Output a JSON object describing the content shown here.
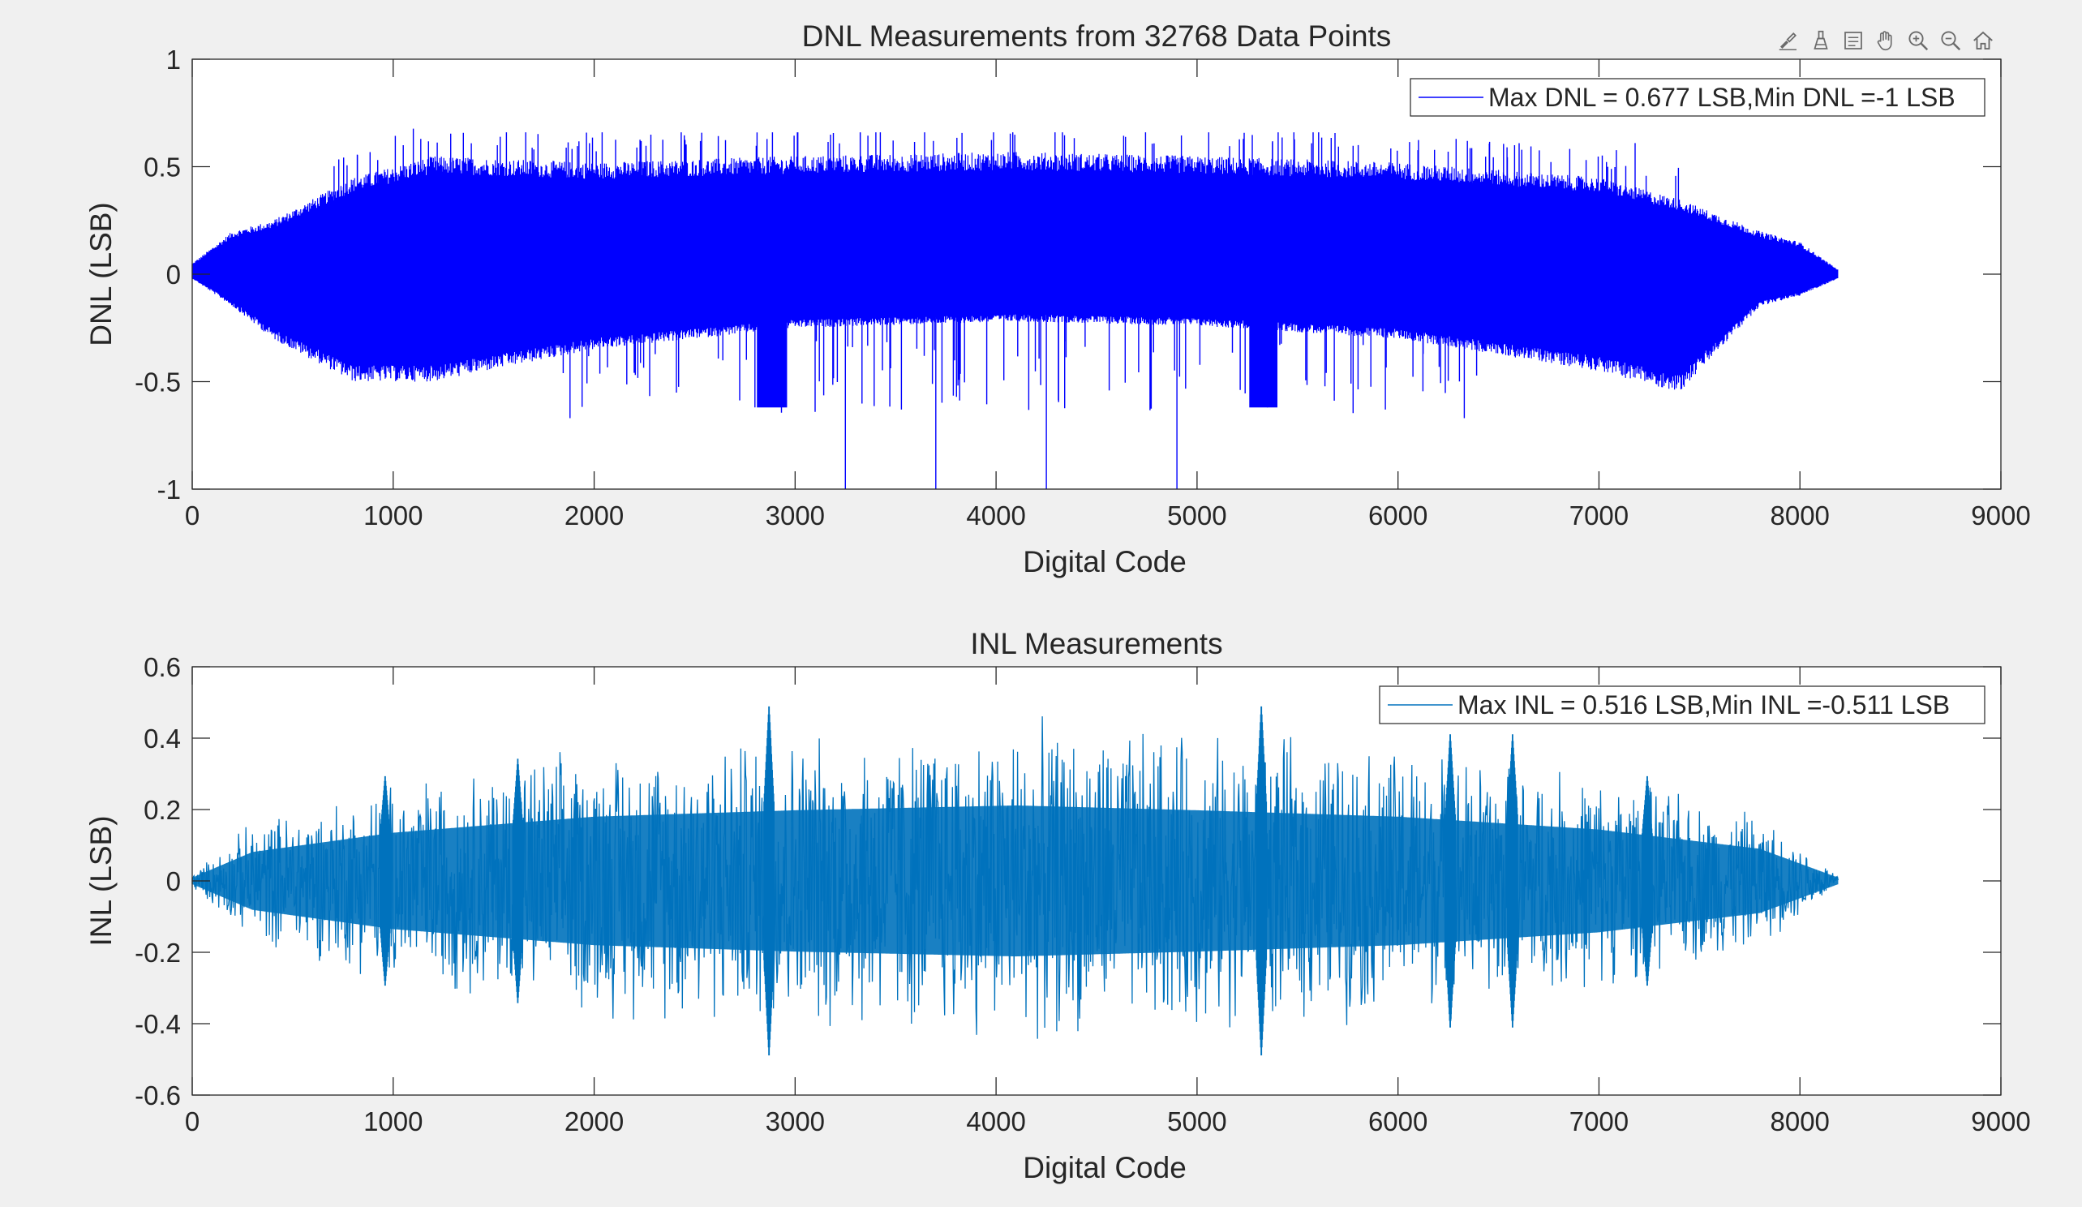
{
  "toolbar": {
    "icons": [
      "brush-icon",
      "data-cursor-icon",
      "legend-toggle-icon",
      "pan-hand-icon",
      "zoom-in-icon",
      "zoom-out-icon",
      "home-icon"
    ]
  },
  "colors": {
    "figure_bg": "#f0f0f0",
    "axes_bg": "#ffffff",
    "dnl_line": "#0000ff",
    "inl_line": "#0072bd",
    "text": "#262626",
    "grid_box": "#262626"
  },
  "chart_data": [
    {
      "type": "line",
      "title": "DNL Measurements from 32768 Data Points",
      "xlabel": "Digital Code",
      "ylabel": "DNL (LSB)",
      "xlim": [
        0,
        9000
      ],
      "ylim": [
        -1,
        1
      ],
      "xticks": [
        "0",
        "1000",
        "2000",
        "3000",
        "4000",
        "5000",
        "6000",
        "7000",
        "8000",
        "9000"
      ],
      "yticks": [
        "1",
        "0.5",
        "0",
        "-0.5",
        "-1"
      ],
      "ytick_values": [
        1,
        0.5,
        0,
        -0.5,
        -1
      ],
      "xtick_values": [
        0,
        1000,
        2000,
        3000,
        4000,
        5000,
        6000,
        7000,
        8000,
        9000
      ],
      "legend": {
        "location": "top-right",
        "entries": [
          "Max DNL = 0.677 LSB,Min DNL =-1 LSB"
        ]
      },
      "series": [
        {
          "name": "Max DNL = 0.677 LSB,Min DNL =-1 LSB",
          "x_range": [
            0,
            8191
          ],
          "max": 0.677,
          "min": -1,
          "upper_envelope": [
            [
              0,
              0.05
            ],
            [
              200,
              0.2
            ],
            [
              400,
              0.25
            ],
            [
              800,
              0.45
            ],
            [
              1200,
              0.55
            ],
            [
              2000,
              0.52
            ],
            [
              3000,
              0.55
            ],
            [
              4100,
              0.57
            ],
            [
              5000,
              0.55
            ],
            [
              6000,
              0.52
            ],
            [
              7000,
              0.45
            ],
            [
              7400,
              0.35
            ],
            [
              7800,
              0.2
            ],
            [
              8000,
              0.15
            ],
            [
              8191,
              0.02
            ]
          ],
          "lower_envelope": [
            [
              0,
              -0.02
            ],
            [
              200,
              -0.15
            ],
            [
              400,
              -0.3
            ],
            [
              800,
              -0.5
            ],
            [
              1200,
              -0.5
            ],
            [
              2000,
              -0.35
            ],
            [
              3000,
              -0.25
            ],
            [
              4100,
              -0.22
            ],
            [
              5000,
              -0.24
            ],
            [
              6000,
              -0.3
            ],
            [
              7000,
              -0.45
            ],
            [
              7400,
              -0.55
            ],
            [
              7800,
              -0.15
            ],
            [
              8000,
              -0.1
            ],
            [
              8191,
              -0.02
            ]
          ],
          "spikes_up": [
            [
              1050,
              0.6
            ],
            [
              1100,
              0.677
            ],
            [
              1250,
              0.5
            ],
            [
              1700,
              0.58
            ],
            [
              3000,
              0.5
            ],
            [
              5000,
              0.52
            ],
            [
              6580,
              0.6
            ],
            [
              7180,
              0.61
            ]
          ],
          "spikes_down": [
            [
              1880,
              -0.67
            ],
            [
              2800,
              -0.62
            ],
            [
              3250,
              -1
            ],
            [
              3700,
              -1
            ],
            [
              4250,
              -1
            ],
            [
              4900,
              -1
            ],
            [
              5350,
              -0.62
            ],
            [
              6330,
              -0.67
            ]
          ]
        }
      ]
    },
    {
      "type": "line",
      "title": "INL Measurements",
      "xlabel": "Digital Code",
      "ylabel": "INL (LSB)",
      "xlim": [
        0,
        9000
      ],
      "ylim": [
        -0.6,
        0.6
      ],
      "xticks": [
        "0",
        "1000",
        "2000",
        "3000",
        "4000",
        "5000",
        "6000",
        "7000",
        "8000",
        "9000"
      ],
      "yticks": [
        "0.6",
        "0.4",
        "0.2",
        "0",
        "-0.2",
        "-0.4",
        "-0.6"
      ],
      "ytick_values": [
        0.6,
        0.4,
        0.2,
        0,
        -0.2,
        -0.4,
        -0.6
      ],
      "xtick_values": [
        0,
        1000,
        2000,
        3000,
        4000,
        5000,
        6000,
        7000,
        8000,
        9000
      ],
      "legend": {
        "location": "top-right",
        "entries": [
          "Max INL = 0.516 LSB,Min INL =-0.511 LSB"
        ]
      },
      "series": [
        {
          "name": "Max INL = 0.516 LSB,Min INL =-0.511 LSB",
          "x_range": [
            0,
            8191
          ],
          "max": 0.516,
          "min": -0.511,
          "envelope": [
            [
              0,
              0.02
            ],
            [
              300,
              0.18
            ],
            [
              1000,
              0.3
            ],
            [
              2000,
              0.4
            ],
            [
              3000,
              0.44
            ],
            [
              4100,
              0.47
            ],
            [
              5000,
              0.44
            ],
            [
              6000,
              0.4
            ],
            [
              7000,
              0.32
            ],
            [
              7800,
              0.2
            ],
            [
              8191,
              0.02
            ]
          ],
          "bursts": [
            [
              2870,
              0.5
            ],
            [
              5320,
              0.5
            ],
            [
              960,
              0.3
            ],
            [
              1620,
              0.35
            ],
            [
              6260,
              0.42
            ],
            [
              6570,
              0.42
            ],
            [
              7240,
              0.3
            ]
          ]
        }
      ]
    }
  ]
}
